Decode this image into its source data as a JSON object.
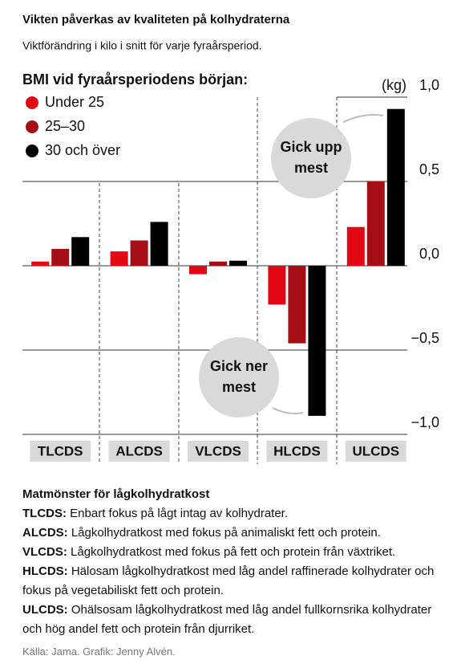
{
  "chart_data": {
    "type": "bar",
    "title": "Vikten påverkas av kvaliteten på kolhydraterna",
    "subtitle": "Viktförändring i kilo i snitt för varje fyraårsperiod.",
    "legend_title": "BMI vid fyraårsperiodens början:",
    "unit": "(kg)",
    "categories": [
      "TLCDS",
      "ALCDS",
      "VLCDS",
      "HLCDS",
      "ULCDS"
    ],
    "series": [
      {
        "name": "Under 25",
        "color": "#e30613",
        "values": [
          0.025,
          0.085,
          -0.05,
          -0.23,
          0.23
        ]
      },
      {
        "name": "25–30",
        "color": "#a50e14",
        "values": [
          0.1,
          0.15,
          0.025,
          -0.46,
          0.5
        ]
      },
      {
        "name": "30 och över",
        "color": "#000000",
        "values": [
          0.17,
          0.26,
          0.03,
          -0.89,
          0.93
        ]
      }
    ],
    "ylim": [
      -1,
      1
    ],
    "yticks": [
      {
        "value": 1,
        "label": "1,0"
      },
      {
        "value": 0.5,
        "label": "0,5"
      },
      {
        "value": 0,
        "label": "0,0"
      },
      {
        "value": -0.5,
        "label": "−0,5"
      },
      {
        "value": -1,
        "label": "−1,0"
      }
    ],
    "grid": true,
    "annotations": [
      {
        "lines": [
          "Gick upp",
          "mest"
        ]
      },
      {
        "lines": [
          "Gick ner",
          "mest"
        ]
      }
    ]
  },
  "notes": {
    "title": "Matmönster för lågkolhydratkost",
    "items": [
      {
        "term": "TLCDS:",
        "text": "Enbart fokus på lågt intag av kolhydrater."
      },
      {
        "term": "ALCDS:",
        "text": "Lågkolhydratkost med fokus på animaliskt fett och protein."
      },
      {
        "term": "VLCDS:",
        "text": "Lågkolhydratkost med fokus på fett och protein från växtriket."
      },
      {
        "term": "HLCDS:",
        "text": "Hälosam lågkolhydratkost med låg andel raffinerade kolhydrater och fokus på vegetabiliskt fett och protein."
      },
      {
        "term": "ULCDS:",
        "text": "Ohälsosam lågkolhydratkost med låg andel fullkornsrika kolhydrater och hög andel fett och protein från djurriket."
      }
    ]
  },
  "source": "Källa: Jama. Grafik: Jenny Alvén."
}
